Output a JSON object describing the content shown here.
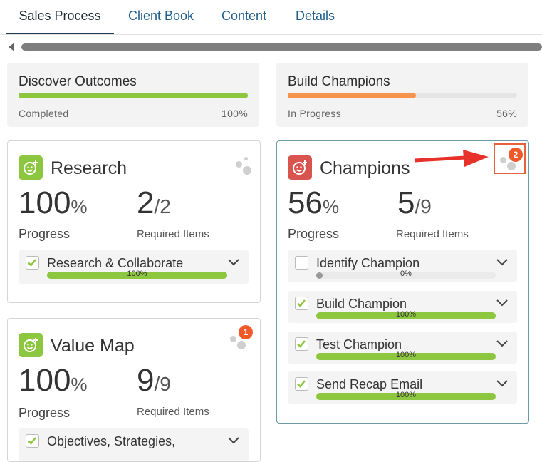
{
  "tabs": [
    {
      "label": "Sales Process",
      "active": true
    },
    {
      "label": "Client Book",
      "active": false
    },
    {
      "label": "Content",
      "active": false
    },
    {
      "label": "Details",
      "active": false
    }
  ],
  "summary": [
    {
      "title": "Discover Outcomes",
      "status": "Completed",
      "percent": "100%",
      "progress": 1.0,
      "color": "#8dc63f"
    },
    {
      "title": "Build Champions",
      "status": "In Progress",
      "percent": "56%",
      "progress": 0.56,
      "color": "#f7944b"
    }
  ],
  "cards": {
    "research": {
      "title": "Research",
      "progress": "100",
      "unit": "%",
      "req_done": "2",
      "req_total": "/2",
      "progress_label": "Progress",
      "req_label": "Required Items",
      "items": [
        {
          "label": "Research & Collaborate",
          "checked": true,
          "percent": "100%",
          "progress": 1.0
        }
      ]
    },
    "value_map": {
      "title": "Value Map",
      "progress": "100",
      "unit": "%",
      "req_done": "9",
      "req_total": "/9",
      "progress_label": "Progress",
      "req_label": "Required Items",
      "badge": "1",
      "items": [
        {
          "label": "Objectives, Strategies,",
          "checked": true
        }
      ]
    },
    "champions": {
      "title": "Champions",
      "progress": "56",
      "unit": "%",
      "req_done": "5",
      "req_total": "/9",
      "progress_label": "Progress",
      "req_label": "Required Items",
      "badge": "2",
      "items": [
        {
          "label": "Identify Champion",
          "checked": false,
          "percent": "0%",
          "progress": 0.0
        },
        {
          "label": "Build Champion",
          "checked": true,
          "percent": "100%",
          "progress": 1.0
        },
        {
          "label": "Test Champion",
          "checked": true,
          "percent": "100%",
          "progress": 1.0
        },
        {
          "label": "Send Recap Email",
          "checked": true,
          "percent": "100%",
          "progress": 1.0
        }
      ]
    }
  },
  "colors": {
    "accent_green": "#8dc63f",
    "accent_orange": "#f7944b",
    "icon_green": "#8dc63f",
    "icon_red": "#d9534f",
    "badge": "#f0592a",
    "annotation_red": "#e8613a"
  },
  "icons": {
    "stage_icon": "smiley-plus-icon",
    "collaborators": "people-dots-icon",
    "expand": "chevron-down-icon",
    "check": "check-icon"
  }
}
